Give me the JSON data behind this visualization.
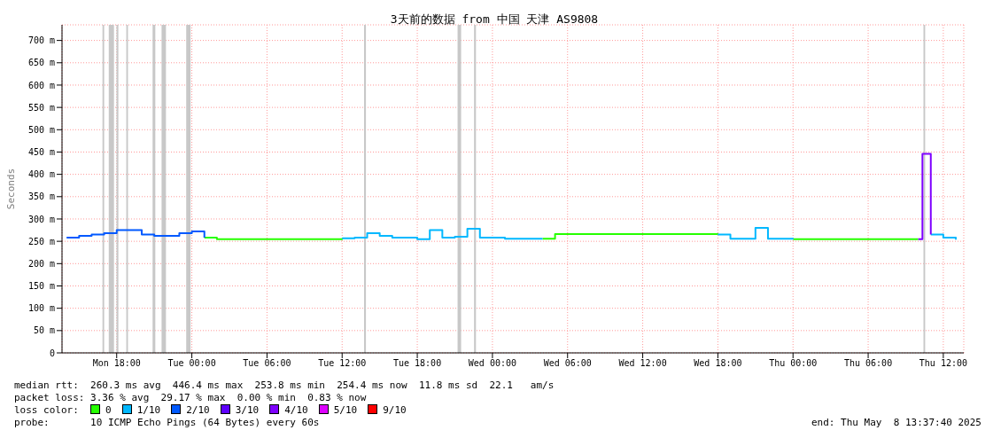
{
  "chart_data": {
    "type": "step",
    "title": "3天前的数据 from 中国 天津 AS9808",
    "ylabel": "Seconds",
    "legend_title": "loss color:",
    "legend": "bottom",
    "grid": true,
    "xlim": [
      "2025-05-05T13:38",
      "2025-05-08T13:38"
    ],
    "xticks": [
      {
        "value": "2025-05-05T18:00",
        "label": "Mon 18:00"
      },
      {
        "value": "2025-05-06T00:00",
        "label": "Tue 00:00"
      },
      {
        "value": "2025-05-06T06:00",
        "label": "Tue 06:00"
      },
      {
        "value": "2025-05-06T12:00",
        "label": "Tue 12:00"
      },
      {
        "value": "2025-05-06T18:00",
        "label": "Tue 18:00"
      },
      {
        "value": "2025-05-07T00:00",
        "label": "Wed 00:00"
      },
      {
        "value": "2025-05-07T06:00",
        "label": "Wed 06:00"
      },
      {
        "value": "2025-05-07T12:00",
        "label": "Wed 12:00"
      },
      {
        "value": "2025-05-07T18:00",
        "label": "Wed 18:00"
      },
      {
        "value": "2025-05-08T00:00",
        "label": "Thu 00:00"
      },
      {
        "value": "2025-05-08T06:00",
        "label": "Thu 06:00"
      },
      {
        "value": "2025-05-08T12:00",
        "label": "Thu 12:00"
      }
    ],
    "ylim": [
      0,
      735
    ],
    "yticks": [
      0,
      {
        "value": 50,
        "label": "50 m"
      },
      {
        "value": 100,
        "label": "100 m"
      },
      {
        "value": 150,
        "label": "150 m"
      },
      {
        "value": 200,
        "label": "200 m"
      },
      {
        "value": 250,
        "label": "250 m"
      },
      {
        "value": 300,
        "label": "300 m"
      },
      {
        "value": 350,
        "label": "350 m"
      },
      {
        "value": 400,
        "label": "400 m"
      },
      {
        "value": 450,
        "label": "450 m"
      },
      {
        "value": 500,
        "label": "500 m"
      },
      {
        "value": 550,
        "label": "550 m"
      },
      {
        "value": 600,
        "label": "600 m"
      },
      {
        "value": 650,
        "label": "650 m"
      },
      {
        "value": 700,
        "label": "700 m"
      }
    ],
    "series": [
      {
        "name": "0",
        "color": "#26ff00",
        "x": [
          "2025-05-06T01:00",
          "2025-05-06T02:00",
          "2025-05-06T03:00",
          "2025-05-06T04:00",
          "2025-05-06T05:00",
          "2025-05-06T06:00",
          "2025-05-06T07:00",
          "2025-05-06T08:00",
          "2025-05-06T09:00",
          "2025-05-06T10:00",
          "2025-05-06T11:00",
          "2025-05-06T12:00",
          "2025-05-06T13:00",
          "2025-05-07T04:00",
          "2025-05-07T05:00",
          "2025-05-07T06:00",
          "2025-05-07T07:00",
          "2025-05-07T08:00",
          "2025-05-07T09:00",
          "2025-05-07T10:00",
          "2025-05-07T11:00",
          "2025-05-07T12:00",
          "2025-05-07T13:00",
          "2025-05-07T14:00",
          "2025-05-07T15:00",
          "2025-05-07T16:00",
          "2025-05-07T17:00",
          "2025-05-07T18:00",
          "2025-05-07T19:00",
          "2025-05-08T00:00",
          "2025-05-08T01:00",
          "2025-05-08T02:00",
          "2025-05-08T03:00",
          "2025-05-08T04:00",
          "2025-05-08T05:00",
          "2025-05-08T06:00",
          "2025-05-08T07:00",
          "2025-05-08T08:00",
          "2025-05-08T09:00",
          "2025-05-08T10:00"
        ],
        "values": [
          258,
          255,
          255,
          255,
          255,
          255,
          255,
          255,
          255,
          255,
          255,
          257,
          null,
          256,
          266,
          266,
          266,
          266,
          266,
          266,
          266,
          266,
          266,
          266,
          266,
          266,
          266,
          265,
          null,
          255,
          255,
          255,
          255,
          255,
          255,
          255,
          255,
          255,
          255,
          255
        ]
      },
      {
        "name": "1/10",
        "color": "#00b8ff",
        "x": [
          "2025-05-06T12:00",
          "2025-05-06T13:00",
          "2025-05-06T14:00",
          "2025-05-06T15:00",
          "2025-05-06T16:00",
          "2025-05-06T17:00",
          "2025-05-06T18:00",
          "2025-05-06T19:00",
          "2025-05-06T20:00",
          "2025-05-06T21:00",
          "2025-05-06T22:00",
          "2025-05-06T23:00",
          "2025-05-07T00:00",
          "2025-05-07T01:00",
          "2025-05-07T02:00",
          "2025-05-07T03:00",
          "2025-05-07T04:00",
          "2025-05-07T05:00",
          "2025-05-07T18:00",
          "2025-05-07T19:00",
          "2025-05-07T20:00",
          "2025-05-07T21:00",
          "2025-05-07T22:00",
          "2025-05-07T23:00",
          "2025-05-08T00:00",
          "2025-05-08T01:00",
          "2025-05-08T11:00",
          "2025-05-08T12:00",
          "2025-05-08T13:00"
        ],
        "values": [
          257,
          258,
          268,
          262,
          258,
          258,
          255,
          275,
          258,
          260,
          278,
          258,
          258,
          256,
          256,
          256,
          256,
          null,
          265,
          256,
          256,
          280,
          256,
          256,
          255,
          null,
          265,
          258,
          254
        ]
      },
      {
        "name": "2/10",
        "color": "#0059ff",
        "x": [
          "2025-05-05T14:00",
          "2025-05-05T15:00",
          "2025-05-05T16:00",
          "2025-05-05T17:00",
          "2025-05-05T18:00",
          "2025-05-05T19:00",
          "2025-05-05T20:00",
          "2025-05-05T21:00",
          "2025-05-05T22:00",
          "2025-05-05T23:00",
          "2025-05-06T00:00",
          "2025-05-06T01:00"
        ],
        "values": [
          258,
          262,
          265,
          268,
          275,
          275,
          265,
          262,
          262,
          268,
          272,
          258
        ]
      },
      {
        "name": "3/10",
        "color": "#5e00ff"
      },
      {
        "name": "4/10",
        "color": "#7e00ff",
        "x": [
          "2025-05-08T10:00",
          "2025-05-08T10:20",
          "2025-05-08T11:00"
        ],
        "values": [
          255,
          446,
          265
        ]
      },
      {
        "name": "5/10",
        "color": "#dd00ff"
      },
      {
        "name": "9/10",
        "color": "#ff0000"
      }
    ],
    "bands": [
      {
        "axis": "x",
        "from": "2025-05-05T16:52",
        "to": "2025-05-05T17:00",
        "color": "#c8c8c8"
      },
      {
        "axis": "x",
        "from": "2025-05-05T17:22",
        "to": "2025-05-05T17:47",
        "color": "#c8c8c8"
      },
      {
        "axis": "x",
        "from": "2025-05-05T17:59",
        "to": "2025-05-05T18:08",
        "color": "#c8c8c8"
      },
      {
        "axis": "x",
        "from": "2025-05-05T18:46",
        "to": "2025-05-05T18:54",
        "color": "#c8c8c8"
      },
      {
        "axis": "x",
        "from": "2025-05-05T20:52",
        "to": "2025-05-05T21:05",
        "color": "#c8c8c8"
      },
      {
        "axis": "x",
        "from": "2025-05-05T21:35",
        "to": "2025-05-05T21:56",
        "color": "#c8c8c8"
      },
      {
        "axis": "x",
        "from": "2025-05-05T23:33",
        "to": "2025-05-05T23:54",
        "color": "#c8c8c8"
      },
      {
        "axis": "x",
        "from": "2025-05-06T13:45",
        "to": "2025-05-06T13:54",
        "color": "#c8c8c8"
      },
      {
        "axis": "x",
        "from": "2025-05-06T21:13",
        "to": "2025-05-06T21:30",
        "color": "#c8c8c8"
      },
      {
        "axis": "x",
        "from": "2025-05-06T22:32",
        "to": "2025-05-06T22:41",
        "color": "#c8c8c8"
      },
      {
        "axis": "x",
        "from": "2025-05-08T10:25",
        "to": "2025-05-08T10:33",
        "color": "#c8c8c8"
      }
    ],
    "annotations": [
      "median rtt:  260.3 ms avg  446.4 ms max  253.8 ms min  254.4 ms now  11.8 ms sd  22.1   am/s",
      "packet loss: 3.36 % avg  29.17 % max  0.00 % min  0.83 % now",
      "probe:       10 ICMP Echo Pings (64 Bytes) every 60s",
      "end: Thu May  8 13:37:40 2025"
    ]
  }
}
